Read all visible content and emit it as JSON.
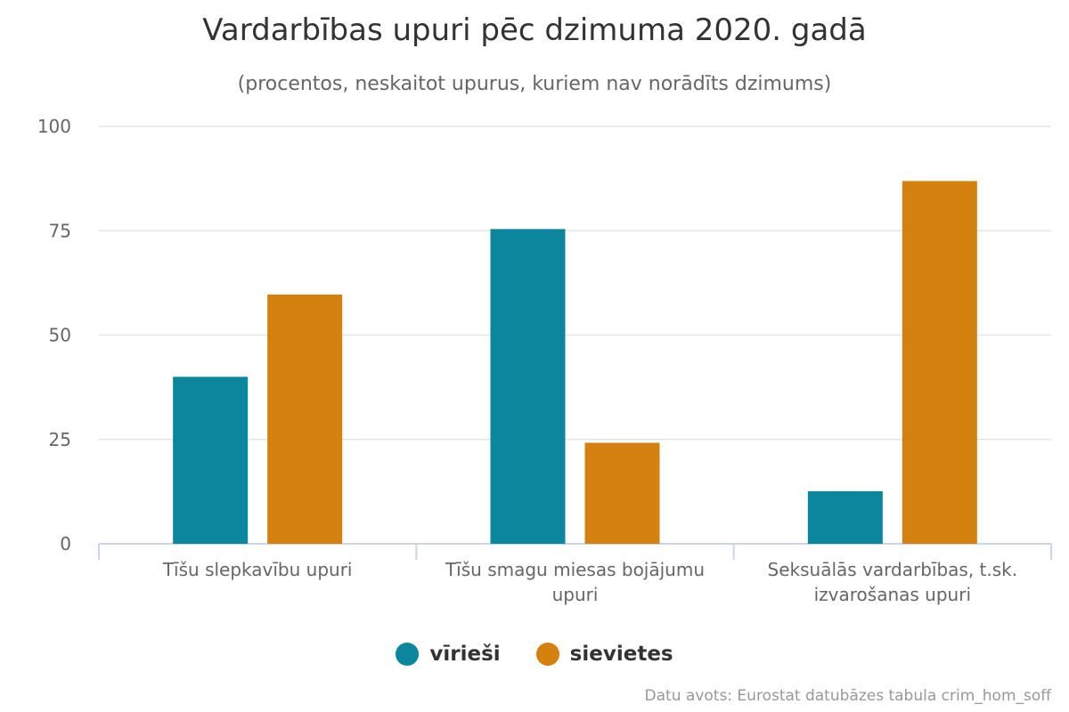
{
  "chart_data": {
    "type": "bar",
    "title": "Vardarbības upuri pēc dzimuma 2020. gadā",
    "subtitle": "(procentos, neskaitot upurus, kuriem nav norādīts dzimums)",
    "categories": [
      [
        "Tīšu slepkavību upuri"
      ],
      [
        "Tīšu smagu miesas bojājumu",
        "upuri"
      ],
      [
        "Seksuālās vardarbības, t.sk.",
        "izvarošanas upuri"
      ]
    ],
    "series": [
      {
        "name": "vīrieši",
        "color": "#0b869c",
        "values": [
          40,
          75.4,
          12.6
        ]
      },
      {
        "name": "sievietes",
        "color": "#d4810f",
        "values": [
          59.7,
          24.2,
          86.9
        ]
      }
    ],
    "ylim": [
      0,
      100
    ],
    "yticks": [
      "0",
      "25",
      "50",
      "75",
      "100"
    ],
    "grid": true,
    "legend_position": "bottom-center",
    "source": "Datu avots: Eurostat datubāzes tabula crim_hom_soff"
  }
}
